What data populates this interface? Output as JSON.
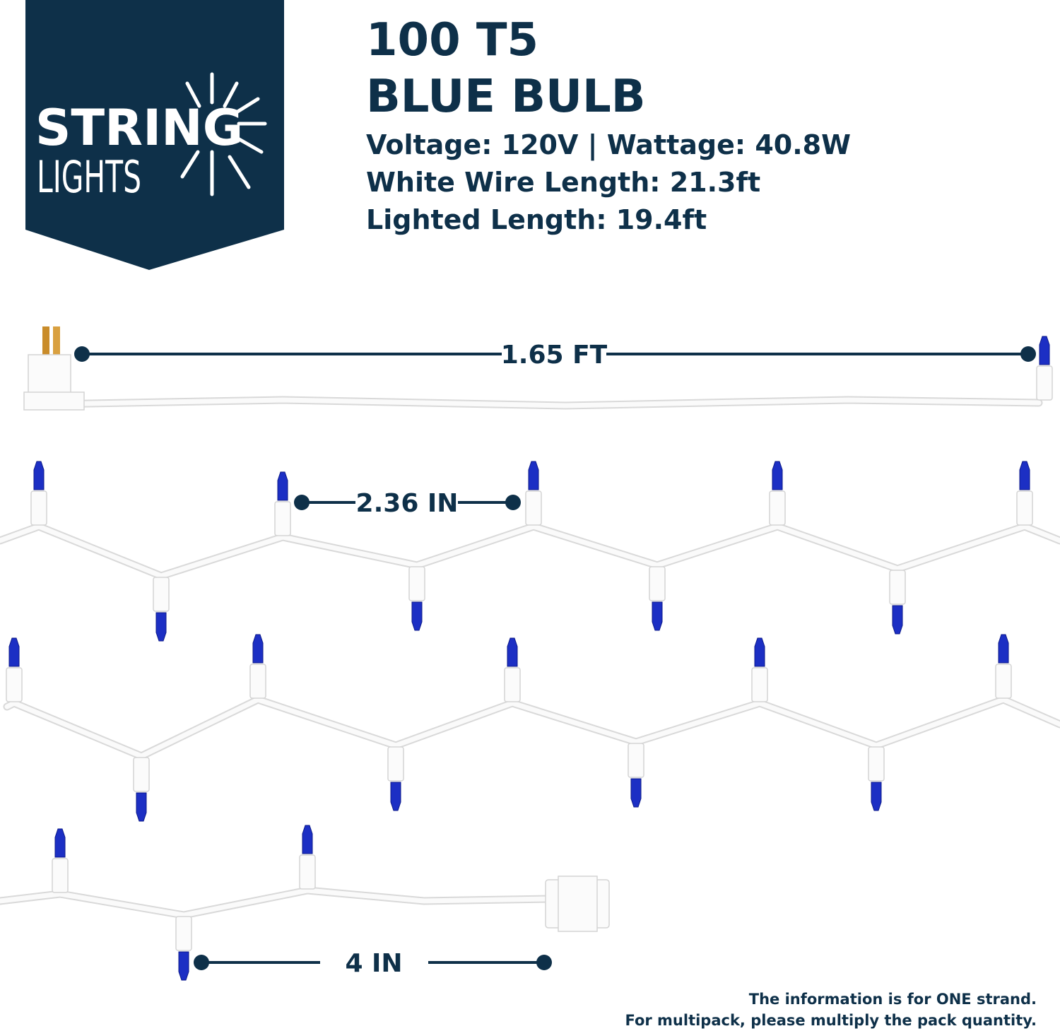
{
  "logo": {
    "line1": "STRING",
    "line2": "LIGHTS"
  },
  "header": {
    "title_line1": "100 T5",
    "title_line2": "BLUE BULB"
  },
  "specs": [
    "Voltage: 120V | Wattage: 40.8W",
    "White Wire Length: 21.3ft",
    "Lighted Length: 19.4ft"
  ],
  "dimensions": {
    "lead": "1.65 FT",
    "spacing": "2.36 IN",
    "tail": "4 IN"
  },
  "footnote": [
    "The information is for ONE strand.",
    "For multipack, please multiply the pack quantity."
  ]
}
